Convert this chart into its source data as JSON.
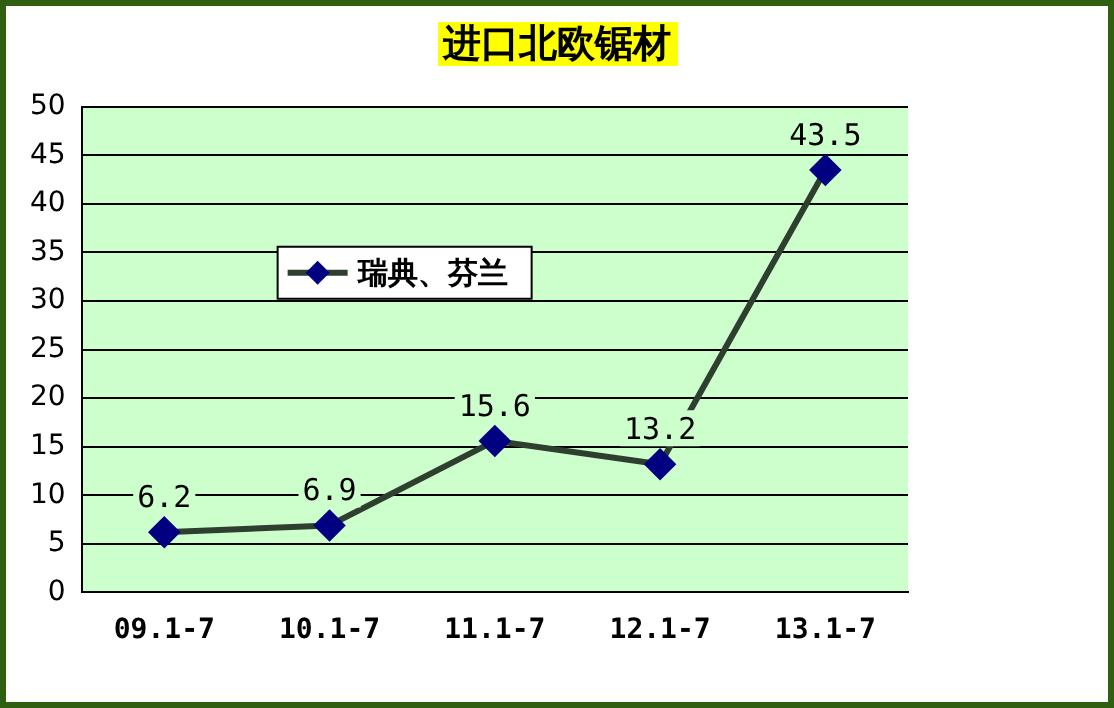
{
  "chart_data": {
    "type": "line",
    "title": "进口北欧锯材",
    "categories": [
      "09.1-7",
      "10.1-7",
      "11.1-7",
      "12.1-7",
      "13.1-7"
    ],
    "series": [
      {
        "name": "瑞典、芬兰",
        "color": "#000080",
        "values": [
          6.2,
          6.9,
          15.6,
          13.2,
          43.5
        ]
      }
    ],
    "ylim": [
      0,
      50
    ],
    "yticks": [
      0,
      5,
      10,
      15,
      20,
      25,
      30,
      35,
      40,
      45,
      50
    ],
    "grid": "y",
    "legend": "top left",
    "marker": "diamond",
    "line_style": "solid",
    "data_labels": true
  }
}
